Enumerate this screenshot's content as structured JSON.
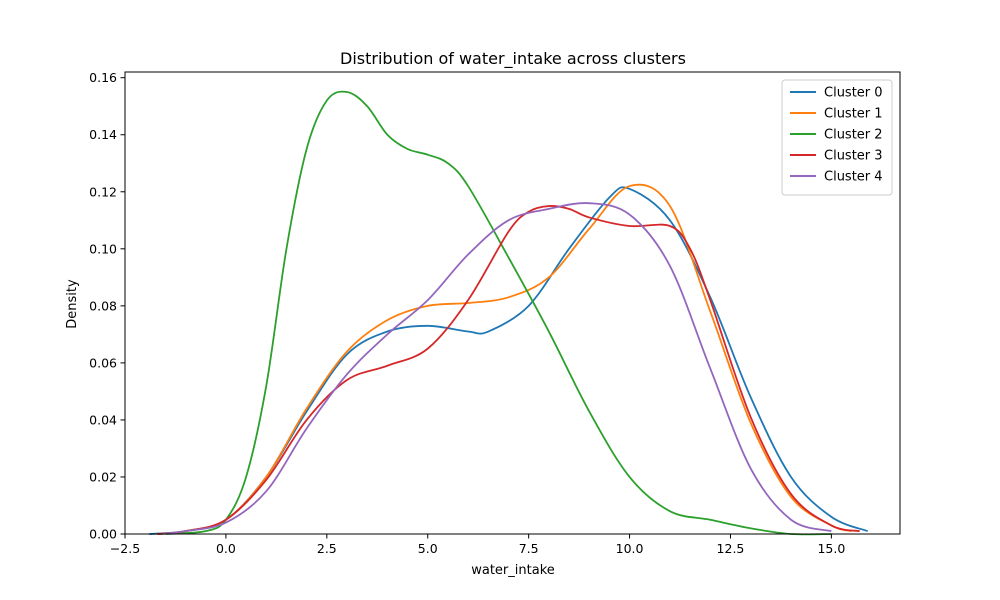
{
  "chart_data": {
    "type": "line",
    "title": "Distribution of water_intake across clusters",
    "xlabel": "water_intake",
    "ylabel": "Density",
    "xlim": [
      -2.5,
      16.7
    ],
    "ylim": [
      0,
      0.162
    ],
    "xticks": [
      -2.5,
      0.0,
      2.5,
      5.0,
      7.5,
      10.0,
      12.5,
      15.0
    ],
    "xtick_labels": [
      "−2.5",
      "0.0",
      "2.5",
      "5.0",
      "7.5",
      "10.0",
      "12.5",
      "15.0"
    ],
    "yticks": [
      0.0,
      0.02,
      0.04,
      0.06,
      0.08,
      0.1,
      0.12,
      0.14,
      0.16
    ],
    "ytick_labels": [
      "0.00",
      "0.02",
      "0.04",
      "0.06",
      "0.08",
      "0.10",
      "0.12",
      "0.14",
      "0.16"
    ],
    "grid": false,
    "legend_position": "top-right",
    "series": [
      {
        "name": "Cluster 0",
        "color": "#1f77b4",
        "x": [
          -1.9,
          -1.0,
          0.0,
          1.0,
          2.0,
          3.0,
          4.0,
          5.0,
          6.0,
          6.5,
          7.5,
          8.5,
          9.5,
          10.0,
          11.0,
          12.0,
          13.0,
          14.0,
          15.0,
          15.9
        ],
        "y": [
          0.0,
          0.001,
          0.005,
          0.02,
          0.043,
          0.063,
          0.071,
          0.073,
          0.071,
          0.071,
          0.08,
          0.1,
          0.118,
          0.121,
          0.11,
          0.083,
          0.048,
          0.02,
          0.006,
          0.001
        ]
      },
      {
        "name": "Cluster 1",
        "color": "#ff7f0e",
        "x": [
          -1.7,
          -1.0,
          0.0,
          1.0,
          2.0,
          3.0,
          4.0,
          5.0,
          6.0,
          7.0,
          8.0,
          9.0,
          10.0,
          11.0,
          12.0,
          13.0,
          14.0,
          15.0,
          15.5
        ],
        "y": [
          0.0,
          0.001,
          0.005,
          0.02,
          0.044,
          0.064,
          0.075,
          0.08,
          0.081,
          0.083,
          0.09,
          0.107,
          0.122,
          0.115,
          0.078,
          0.039,
          0.013,
          0.003,
          0.001
        ]
      },
      {
        "name": "Cluster 2",
        "color": "#2ca02c",
        "x": [
          -1.5,
          -0.5,
          0.0,
          0.5,
          1.0,
          1.5,
          2.0,
          2.5,
          3.0,
          3.5,
          4.0,
          4.5,
          5.0,
          5.5,
          6.0,
          7.0,
          8.0,
          9.0,
          10.0,
          11.0,
          12.0,
          13.0,
          14.0,
          15.0
        ],
        "y": [
          0.0,
          0.001,
          0.005,
          0.02,
          0.052,
          0.1,
          0.135,
          0.152,
          0.155,
          0.15,
          0.14,
          0.135,
          0.133,
          0.13,
          0.122,
          0.097,
          0.071,
          0.043,
          0.02,
          0.008,
          0.005,
          0.002,
          0.0,
          0.0
        ]
      },
      {
        "name": "Cluster 3",
        "color": "#d62728",
        "x": [
          -1.7,
          -1.0,
          0.0,
          1.0,
          2.0,
          3.0,
          4.0,
          5.0,
          6.0,
          7.0,
          7.5,
          8.0,
          8.5,
          9.0,
          10.0,
          11.0,
          11.5,
          12.0,
          13.0,
          14.0,
          15.0,
          15.7
        ],
        "y": [
          0.0,
          0.001,
          0.005,
          0.019,
          0.04,
          0.054,
          0.059,
          0.065,
          0.082,
          0.106,
          0.113,
          0.115,
          0.114,
          0.111,
          0.108,
          0.108,
          0.1,
          0.082,
          0.041,
          0.014,
          0.003,
          0.001
        ]
      },
      {
        "name": "Cluster 4",
        "color": "#9467bd",
        "x": [
          -1.6,
          -1.0,
          0.0,
          1.0,
          2.0,
          3.0,
          4.0,
          5.0,
          6.0,
          7.0,
          8.0,
          9.0,
          10.0,
          11.0,
          12.0,
          13.0,
          14.0,
          15.0
        ],
        "y": [
          0.0,
          0.001,
          0.004,
          0.015,
          0.037,
          0.056,
          0.07,
          0.082,
          0.098,
          0.11,
          0.114,
          0.116,
          0.112,
          0.094,
          0.058,
          0.023,
          0.005,
          0.001
        ]
      }
    ]
  }
}
